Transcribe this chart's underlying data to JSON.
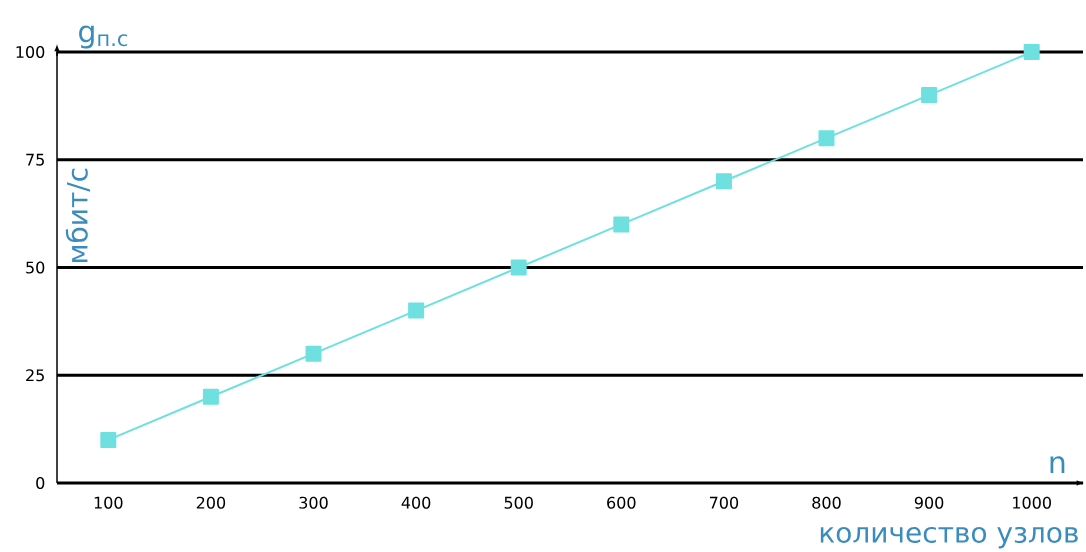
{
  "chart_data": {
    "type": "line",
    "xlabel": "количество узлов",
    "ylabel": "мбит/с",
    "annotations": [
      "g$_{п.с}$",
      "n"
    ],
    "x": [
      100,
      200,
      300,
      400,
      500,
      600,
      700,
      800,
      900,
      1000
    ],
    "series": [
      {
        "color": "#6ee0e0",
        "values": [
          10,
          20,
          30,
          40,
          50,
          60,
          70,
          80,
          90,
          100
        ]
      }
    ],
    "xlim": [
      50,
      1050
    ],
    "ylim": [
      0,
      100
    ],
    "xticks": [
      100,
      200,
      300,
      400,
      500,
      600,
      700,
      800,
      900,
      1000
    ],
    "yticks": [
      0,
      25,
      50,
      75,
      100
    ],
    "grid": "y",
    "marker": "square",
    "line_style": "solid"
  }
}
